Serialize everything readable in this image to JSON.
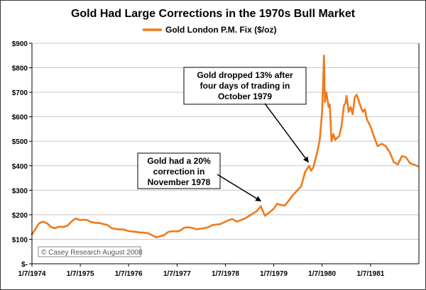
{
  "chart_data": {
    "type": "line",
    "title": "Gold Had Large Corrections in the 1970s Bull Market",
    "legend": {
      "position": "top",
      "entries": [
        "Gold London P.M. Fix ($/oz)"
      ]
    },
    "credit": "© Casey Research August 2008",
    "xlabel": "",
    "ylabel": "",
    "x_ticks": [
      "1/7/1974",
      "1/7/1975",
      "1/7/1976",
      "1/7/1977",
      "1/7/1978",
      "1/7/1979",
      "1/7/1980",
      "1/7/1981"
    ],
    "y_ticks": [
      "$-",
      "$100",
      "$200",
      "$300",
      "$400",
      "$500",
      "$600",
      "$700",
      "$800",
      "$900"
    ],
    "ylim": [
      0,
      900
    ],
    "xlim": [
      "1974-01-07",
      "1982-01-07"
    ],
    "grid": "horizontal",
    "colors": {
      "series": "#f07a1a",
      "frame": "#3a3a3a",
      "grid": "#c8c8c8"
    },
    "series": [
      {
        "name": "Gold London P.M. Fix ($/oz)",
        "points": [
          [
            "1974-01-07",
            120
          ],
          [
            "1974-02-01",
            140
          ],
          [
            "1974-03-01",
            165
          ],
          [
            "1974-04-01",
            172
          ],
          [
            "1974-05-01",
            165
          ],
          [
            "1974-06-01",
            150
          ],
          [
            "1974-07-01",
            145
          ],
          [
            "1974-08-01",
            152
          ],
          [
            "1974-09-01",
            150
          ],
          [
            "1974-10-01",
            155
          ],
          [
            "1974-11-01",
            172
          ],
          [
            "1974-12-01",
            185
          ],
          [
            "1975-01-07",
            178
          ],
          [
            "1975-02-01",
            180
          ],
          [
            "1975-03-01",
            178
          ],
          [
            "1975-04-01",
            170
          ],
          [
            "1975-05-01",
            167
          ],
          [
            "1975-06-01",
            166
          ],
          [
            "1975-07-01",
            162
          ],
          [
            "1975-08-01",
            158
          ],
          [
            "1975-09-01",
            145
          ],
          [
            "1975-10-01",
            142
          ],
          [
            "1975-11-01",
            140
          ],
          [
            "1975-12-01",
            140
          ],
          [
            "1976-01-07",
            133
          ],
          [
            "1976-02-01",
            132
          ],
          [
            "1976-03-01",
            130
          ],
          [
            "1976-04-01",
            128
          ],
          [
            "1976-05-01",
            127
          ],
          [
            "1976-06-01",
            125
          ],
          [
            "1976-07-01",
            117
          ],
          [
            "1976-08-01",
            108
          ],
          [
            "1976-09-01",
            112
          ],
          [
            "1976-10-01",
            117
          ],
          [
            "1976-11-01",
            130
          ],
          [
            "1976-12-01",
            133
          ],
          [
            "1977-01-07",
            132
          ],
          [
            "1977-02-01",
            136
          ],
          [
            "1977-03-01",
            147
          ],
          [
            "1977-04-01",
            149
          ],
          [
            "1977-05-01",
            146
          ],
          [
            "1977-06-01",
            141
          ],
          [
            "1977-07-01",
            143
          ],
          [
            "1977-08-01",
            145
          ],
          [
            "1977-09-01",
            150
          ],
          [
            "1977-10-01",
            158
          ],
          [
            "1977-11-01",
            160
          ],
          [
            "1977-12-01",
            162
          ],
          [
            "1978-01-07",
            172
          ],
          [
            "1978-02-01",
            178
          ],
          [
            "1978-03-01",
            183
          ],
          [
            "1978-04-01",
            172
          ],
          [
            "1978-05-01",
            178
          ],
          [
            "1978-06-01",
            184
          ],
          [
            "1978-07-01",
            194
          ],
          [
            "1978-08-01",
            205
          ],
          [
            "1978-09-01",
            215
          ],
          [
            "1978-10-01",
            235
          ],
          [
            "1978-11-01",
            196
          ],
          [
            "1978-12-01",
            208
          ],
          [
            "1979-01-07",
            225
          ],
          [
            "1979-02-01",
            245
          ],
          [
            "1979-03-01",
            240
          ],
          [
            "1979-04-01",
            238
          ],
          [
            "1979-05-01",
            258
          ],
          [
            "1979-06-01",
            280
          ],
          [
            "1979-07-01",
            298
          ],
          [
            "1979-08-01",
            315
          ],
          [
            "1979-09-01",
            375
          ],
          [
            "1979-10-01",
            400
          ],
          [
            "1979-10-15",
            380
          ],
          [
            "1979-11-01",
            392
          ],
          [
            "1979-12-01",
            455
          ],
          [
            "1979-12-20",
            505
          ],
          [
            "1980-01-07",
            620
          ],
          [
            "1980-01-21",
            850
          ],
          [
            "1980-01-28",
            660
          ],
          [
            "1980-02-08",
            700
          ],
          [
            "1980-02-25",
            640
          ],
          [
            "1980-03-05",
            650
          ],
          [
            "1980-03-18",
            500
          ],
          [
            "1980-04-01",
            530
          ],
          [
            "1980-04-15",
            505
          ],
          [
            "1980-05-01",
            515
          ],
          [
            "1980-05-15",
            520
          ],
          [
            "1980-06-01",
            560
          ],
          [
            "1980-06-20",
            645
          ],
          [
            "1980-07-01",
            655
          ],
          [
            "1980-07-10",
            685
          ],
          [
            "1980-07-25",
            620
          ],
          [
            "1980-08-10",
            640
          ],
          [
            "1980-08-25",
            610
          ],
          [
            "1980-09-10",
            680
          ],
          [
            "1980-09-25",
            690
          ],
          [
            "1980-10-10",
            665
          ],
          [
            "1980-10-25",
            640
          ],
          [
            "1980-11-10",
            620
          ],
          [
            "1980-11-25",
            630
          ],
          [
            "1980-12-10",
            590
          ],
          [
            "1981-01-07",
            560
          ],
          [
            "1981-02-01",
            520
          ],
          [
            "1981-03-01",
            480
          ],
          [
            "1981-04-01",
            490
          ],
          [
            "1981-05-01",
            480
          ],
          [
            "1981-06-01",
            455
          ],
          [
            "1981-07-01",
            415
          ],
          [
            "1981-08-01",
            405
          ],
          [
            "1981-09-01",
            440
          ],
          [
            "1981-10-01",
            435
          ],
          [
            "1981-11-01",
            410
          ],
          [
            "1981-12-01",
            405
          ],
          [
            "1981-12-31",
            398
          ]
        ]
      }
    ],
    "annotations": [
      {
        "lines": [
          "Gold dropped 13% after",
          "four days of trading in",
          "October 1979"
        ],
        "target": [
          "1979-09-25",
          392
        ]
      },
      {
        "lines": [
          "Gold had a 20%",
          "correction in",
          "November 1978"
        ],
        "target": [
          "1978-10-01",
          233
        ]
      }
    ]
  }
}
